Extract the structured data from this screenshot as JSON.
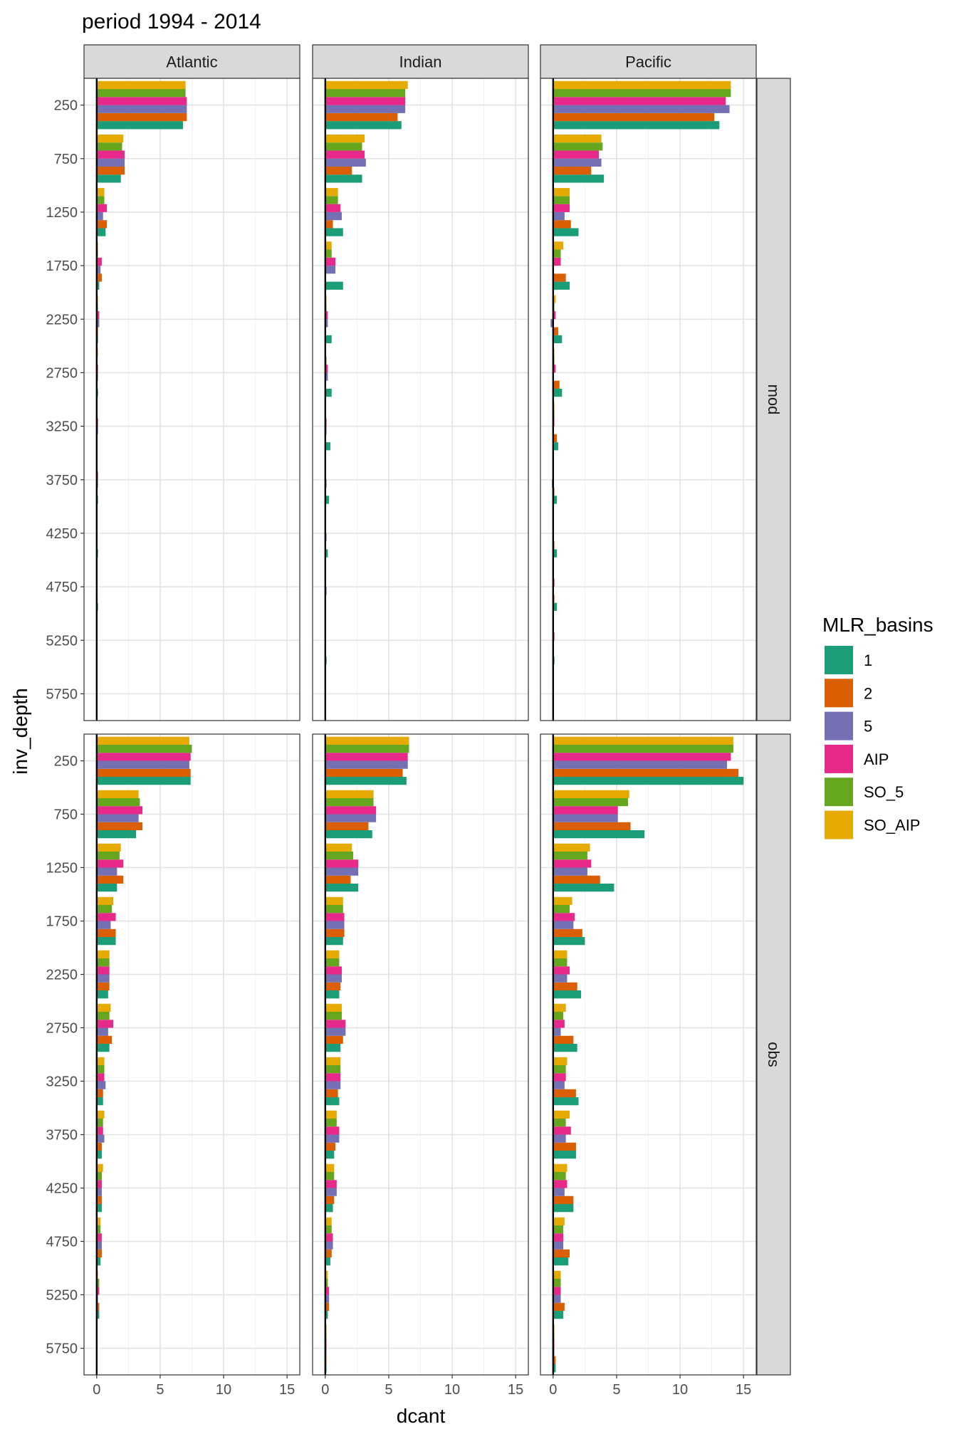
{
  "chart_data": {
    "type": "bar",
    "orientation": "horizontal",
    "title": "period 1994 - 2014",
    "xlabel": "dcant",
    "ylabel": "inv_depth",
    "xlim": [
      -1,
      16
    ],
    "x_ticks": [
      0,
      5,
      10,
      15
    ],
    "y_ticks": [
      250,
      750,
      1250,
      1750,
      2250,
      2750,
      3250,
      3750,
      4250,
      4750,
      5250,
      5750
    ],
    "y_reversed": true,
    "grid": true,
    "legend_position": "right",
    "legend_title": "MLR_basins",
    "panel_columns": [
      "Atlantic",
      "Indian",
      "Pacific"
    ],
    "panel_rows": [
      "mod",
      "obs"
    ],
    "series": [
      {
        "name": "1",
        "color": "#1B9E77"
      },
      {
        "name": "2",
        "color": "#D95F02"
      },
      {
        "name": "5",
        "color": "#7570B3"
      },
      {
        "name": "AIP",
        "color": "#E7298A"
      },
      {
        "name": "SO_5",
        "color": "#66A61E"
      },
      {
        "name": "SO_AIP",
        "color": "#E6AB02"
      }
    ],
    "panels": [
      {
        "row": "mod",
        "col": "Atlantic",
        "values": [
          [
            6.8,
            7.1,
            7.1,
            7.1,
            7.0,
            7.0
          ],
          [
            1.9,
            2.2,
            2.2,
            2.2,
            2.0,
            2.1
          ],
          [
            0.7,
            0.8,
            0.5,
            0.8,
            0.6,
            0.6
          ],
          [
            0.2,
            0.4,
            0.3,
            0.4,
            0.1,
            0.1
          ],
          [
            0.1,
            0.1,
            0.2,
            0.2,
            0.1,
            0.1
          ],
          [
            0.1,
            0.0,
            0.1,
            0.1,
            0.0,
            0.1
          ],
          [
            0.0,
            0.0,
            0.1,
            0.1,
            0.0,
            0.0
          ],
          [
            0.1,
            0.0,
            0.1,
            0.1,
            0.0,
            0.0
          ],
          [
            0.1,
            0.0,
            0.0,
            0.0,
            0.0,
            0.0
          ],
          [
            0.1,
            0.0,
            0.0,
            0.0,
            0.0,
            0.0
          ],
          [
            0.0,
            0.0,
            0.0,
            0.0,
            0.0,
            0.0
          ],
          [
            0.0,
            0.0,
            0.0,
            0.0,
            0.0,
            0.0
          ]
        ]
      },
      {
        "row": "mod",
        "col": "Indian",
        "values": [
          [
            6.0,
            5.7,
            6.3,
            6.3,
            6.3,
            6.5
          ],
          [
            2.9,
            2.1,
            3.2,
            3.1,
            2.9,
            3.1
          ],
          [
            1.4,
            0.6,
            1.3,
            1.2,
            1.0,
            1.0
          ],
          [
            1.4,
            0.0,
            0.8,
            0.8,
            0.5,
            0.5
          ],
          [
            0.5,
            0.0,
            0.2,
            0.2,
            0.1,
            0.1
          ],
          [
            0.5,
            0.0,
            0.2,
            0.2,
            0.1,
            0.0
          ],
          [
            0.4,
            0.0,
            0.1,
            0.1,
            0.0,
            0.0
          ],
          [
            0.3,
            0.0,
            0.1,
            0.0,
            0.0,
            0.0
          ],
          [
            0.2,
            0.0,
            0.1,
            0.0,
            0.0,
            0.0
          ],
          [
            0.0,
            0.0,
            0.1,
            0.0,
            0.0,
            0.0
          ],
          [
            0.1,
            0.0,
            0.0,
            0.0,
            0.0,
            0.0
          ],
          [
            0.0,
            0.0,
            0.0,
            0.0,
            0.0,
            0.0
          ]
        ]
      },
      {
        "row": "mod",
        "col": "Pacific",
        "values": [
          [
            13.1,
            12.7,
            13.9,
            13.6,
            14.0,
            14.0
          ],
          [
            4.0,
            3.0,
            3.8,
            3.6,
            3.9,
            3.8
          ],
          [
            2.0,
            1.4,
            0.9,
            1.3,
            1.3,
            1.3
          ],
          [
            1.3,
            1.0,
            0.0,
            0.6,
            0.6,
            0.8
          ],
          [
            0.7,
            0.4,
            -0.2,
            0.2,
            0.1,
            0.2
          ],
          [
            0.7,
            0.5,
            0.0,
            0.2,
            0.1,
            0.1
          ],
          [
            0.4,
            0.3,
            0.0,
            0.1,
            0.1,
            0.1
          ],
          [
            0.3,
            0.1,
            -0.1,
            0.0,
            0.0,
            0.0
          ],
          [
            0.3,
            0.1,
            0.0,
            0.0,
            0.0,
            0.0
          ],
          [
            0.3,
            0.1,
            0.0,
            0.1,
            0.0,
            0.0
          ],
          [
            0.1,
            0.0,
            0.0,
            0.1,
            0.0,
            0.0
          ],
          [
            0.0,
            0.0,
            0.0,
            0.0,
            0.0,
            0.0
          ]
        ]
      },
      {
        "row": "obs",
        "col": "Atlantic",
        "values": [
          [
            7.4,
            7.4,
            7.3,
            7.4,
            7.5,
            7.3
          ],
          [
            3.1,
            3.6,
            3.3,
            3.6,
            3.4,
            3.3
          ],
          [
            1.6,
            2.1,
            1.6,
            2.1,
            1.8,
            1.9
          ],
          [
            1.5,
            1.5,
            1.1,
            1.5,
            1.2,
            1.3
          ],
          [
            0.9,
            1.0,
            1.0,
            1.0,
            1.0,
            1.0
          ],
          [
            1.0,
            1.2,
            0.9,
            1.3,
            1.0,
            1.1
          ],
          [
            0.5,
            0.5,
            0.7,
            0.6,
            0.6,
            0.6
          ],
          [
            0.4,
            0.4,
            0.6,
            0.5,
            0.5,
            0.6
          ],
          [
            0.4,
            0.4,
            0.4,
            0.4,
            0.4,
            0.5
          ],
          [
            0.3,
            0.4,
            0.4,
            0.4,
            0.3,
            0.3
          ],
          [
            0.2,
            0.2,
            0.1,
            0.2,
            0.2,
            0.1
          ],
          [
            0.0,
            0.0,
            0.0,
            0.0,
            0.0,
            0.0
          ]
        ]
      },
      {
        "row": "obs",
        "col": "Indian",
        "values": [
          [
            6.4,
            6.1,
            6.5,
            6.5,
            6.6,
            6.6
          ],
          [
            3.7,
            3.4,
            4.0,
            4.0,
            3.8,
            3.8
          ],
          [
            2.6,
            2.0,
            2.6,
            2.6,
            2.2,
            2.1
          ],
          [
            1.4,
            1.5,
            1.5,
            1.5,
            1.4,
            1.4
          ],
          [
            1.1,
            1.2,
            1.3,
            1.3,
            1.1,
            1.1
          ],
          [
            1.2,
            1.4,
            1.6,
            1.6,
            1.3,
            1.3
          ],
          [
            1.1,
            1.0,
            1.2,
            1.2,
            1.2,
            1.2
          ],
          [
            0.7,
            0.8,
            1.1,
            1.1,
            0.9,
            0.9
          ],
          [
            0.6,
            0.7,
            0.9,
            0.9,
            0.7,
            0.7
          ],
          [
            0.4,
            0.5,
            0.6,
            0.6,
            0.5,
            0.5
          ],
          [
            0.2,
            0.3,
            0.3,
            0.3,
            0.2,
            0.2
          ],
          [
            0.1,
            0.1,
            0.1,
            0.1,
            0.1,
            0.1
          ]
        ]
      },
      {
        "row": "obs",
        "col": "Pacific",
        "values": [
          [
            15.0,
            14.6,
            13.7,
            14.0,
            14.2,
            14.2
          ],
          [
            7.2,
            6.1,
            5.1,
            5.1,
            5.9,
            6.0
          ],
          [
            4.8,
            3.7,
            2.7,
            3.0,
            2.7,
            2.9
          ],
          [
            2.5,
            2.3,
            1.6,
            1.7,
            1.3,
            1.5
          ],
          [
            2.2,
            1.9,
            1.1,
            1.3,
            1.1,
            1.1
          ],
          [
            1.9,
            1.6,
            0.6,
            0.9,
            0.8,
            1.0
          ],
          [
            2.0,
            1.8,
            0.9,
            1.0,
            1.0,
            1.1
          ],
          [
            1.8,
            1.8,
            1.0,
            1.4,
            1.0,
            1.3
          ],
          [
            1.6,
            1.6,
            0.9,
            1.1,
            1.0,
            1.1
          ],
          [
            1.2,
            1.3,
            0.8,
            0.8,
            0.8,
            0.9
          ],
          [
            0.8,
            0.9,
            0.6,
            0.6,
            0.6,
            0.6
          ],
          [
            0.2,
            0.2,
            0.1,
            0.1,
            0.1,
            0.1
          ]
        ]
      }
    ]
  }
}
